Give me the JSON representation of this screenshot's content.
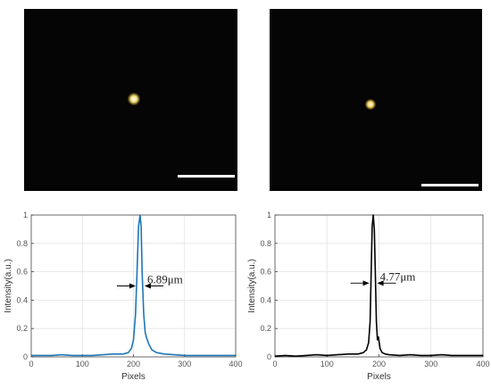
{
  "images": [
    {
      "name": "left-spot-image",
      "spot_color": "#f4e27a"
    },
    {
      "name": "right-spot-image",
      "spot_color": "#f6d860"
    }
  ],
  "chart_data": [
    {
      "type": "line",
      "xlabel": "Pixels",
      "ylabel": "Intensity(a.u.)",
      "xlim": [
        0,
        400
      ],
      "ylim": [
        0,
        1
      ],
      "xticks": [
        "0",
        "100",
        "200",
        "300",
        "400"
      ],
      "yticks": [
        "0",
        "0.2",
        "0.4",
        "0.6",
        "0.8",
        "1"
      ],
      "grid": true,
      "color": "#1f77b4",
      "annotation": "6.89μm",
      "annotation_y": 0.5,
      "fwhm_range": [
        206,
        220
      ],
      "series": [
        {
          "x": [
            0,
            20,
            40,
            60,
            80,
            100,
            120,
            140,
            160,
            180,
            190,
            196,
            200,
            204,
            207,
            210,
            213,
            215,
            217,
            220,
            223,
            226,
            230,
            236,
            245,
            260,
            280,
            300,
            320,
            340,
            360,
            380,
            400
          ],
          "values": [
            0.01,
            0.01,
            0.01,
            0.015,
            0.01,
            0.01,
            0.01,
            0.015,
            0.02,
            0.02,
            0.03,
            0.06,
            0.12,
            0.3,
            0.6,
            0.92,
            1.0,
            0.92,
            0.6,
            0.3,
            0.17,
            0.13,
            0.09,
            0.05,
            0.03,
            0.02,
            0.015,
            0.01,
            0.01,
            0.01,
            0.01,
            0.01,
            0.01
          ]
        }
      ]
    },
    {
      "type": "line",
      "xlabel": "Pixels",
      "ylabel": "Intensity(a.u.)",
      "xlim": [
        0,
        400
      ],
      "ylim": [
        0,
        1
      ],
      "xticks": [
        "0",
        "100",
        "200",
        "300",
        "400"
      ],
      "yticks": [
        "0",
        "0.2",
        "0.4",
        "0.6",
        "0.8",
        "1"
      ],
      "grid": true,
      "color": "#000000",
      "annotation": "4.77μm",
      "annotation_y": 0.52,
      "fwhm_range": [
        183,
        195
      ],
      "series": [
        {
          "x": [
            0,
            20,
            40,
            60,
            80,
            100,
            120,
            140,
            160,
            170,
            176,
            180,
            183,
            185,
            187,
            189,
            191,
            193,
            195,
            197,
            199,
            202,
            206,
            212,
            220,
            240,
            260,
            280,
            300,
            320,
            340,
            360,
            380,
            400
          ],
          "values": [
            0.005,
            0.01,
            0.005,
            0.01,
            0.015,
            0.01,
            0.015,
            0.02,
            0.02,
            0.03,
            0.05,
            0.1,
            0.25,
            0.6,
            0.92,
            1.0,
            0.9,
            0.6,
            0.25,
            0.12,
            0.14,
            0.06,
            0.03,
            0.02,
            0.015,
            0.01,
            0.015,
            0.01,
            0.01,
            0.015,
            0.01,
            0.01,
            0.01,
            0.01
          ]
        }
      ]
    }
  ]
}
